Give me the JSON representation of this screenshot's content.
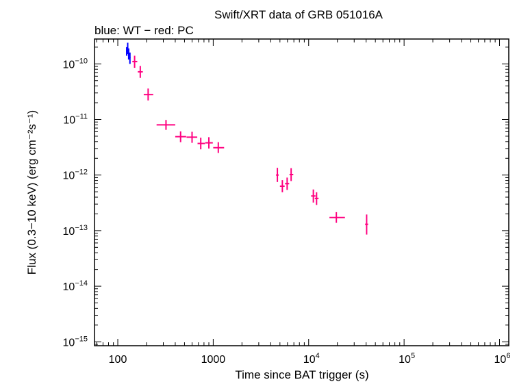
{
  "chart_data": {
    "type": "scatter",
    "title": "Swift/XRT data of GRB 051016A",
    "subtitle": "blue: WT − red: PC",
    "xlabel": "Time since BAT trigger (s)",
    "ylabel": "Flux (0.3−10 keV) (erg cm⁻²s⁻¹)",
    "xscale": "log",
    "yscale": "log",
    "xlim": [
      57,
      1250000
    ],
    "ylim": [
      8.5e-16,
      2.8e-10
    ],
    "x_ticks": [
      {
        "value": 100,
        "label": "100",
        "exp": ""
      },
      {
        "value": 1000,
        "label": "1000",
        "exp": ""
      },
      {
        "value": 10000,
        "label": "10",
        "exp": "4"
      },
      {
        "value": 100000,
        "label": "10",
        "exp": "5"
      },
      {
        "value": 1000000,
        "label": "10",
        "exp": "6"
      }
    ],
    "y_ticks": [
      {
        "value": 1e-10,
        "label": "10",
        "exp": "−10"
      },
      {
        "value": 1e-11,
        "label": "10",
        "exp": "−11"
      },
      {
        "value": 1e-12,
        "label": "10",
        "exp": "−12"
      },
      {
        "value": 1e-13,
        "label": "10",
        "exp": "−13"
      },
      {
        "value": 1e-14,
        "label": "10",
        "exp": "−14"
      },
      {
        "value": 1e-15,
        "label": "10",
        "exp": "−15"
      }
    ],
    "grid": false,
    "series": [
      {
        "mode": "WT",
        "color": "#0000ff",
        "points": [
          {
            "x": 124,
            "xlo": 122,
            "xhi": 126,
            "y": 1.7e-10,
            "ylo": 1.4e-10,
            "yhi": 2e-10
          },
          {
            "x": 127,
            "xlo": 126,
            "xhi": 129,
            "y": 1.9e-10,
            "ylo": 1.5e-10,
            "yhi": 2.4e-10
          },
          {
            "x": 130,
            "xlo": 129,
            "xhi": 132,
            "y": 1.5e-10,
            "ylo": 1.2e-10,
            "yhi": 1.9e-10
          },
          {
            "x": 134,
            "xlo": 132,
            "xhi": 136,
            "y": 1.3e-10,
            "ylo": 1e-10,
            "yhi": 1.6e-10
          }
        ]
      },
      {
        "mode": "PC",
        "color": "#ff0080",
        "points": [
          {
            "x": 150,
            "xlo": 142,
            "xhi": 160,
            "y": 1.1e-10,
            "ylo": 8.5e-11,
            "yhi": 1.4e-10
          },
          {
            "x": 172,
            "xlo": 162,
            "xhi": 183,
            "y": 7.2e-11,
            "ylo": 5.6e-11,
            "yhi": 9.2e-11
          },
          {
            "x": 208,
            "xlo": 187,
            "xhi": 235,
            "y": 2.8e-11,
            "ylo": 2.2e-11,
            "yhi": 3.6e-11
          },
          {
            "x": 320,
            "xlo": 255,
            "xhi": 400,
            "y": 8e-12,
            "ylo": 6.5e-12,
            "yhi": 9.8e-12
          },
          {
            "x": 455,
            "xlo": 400,
            "xhi": 520,
            "y": 4.9e-12,
            "ylo": 3.9e-12,
            "yhi": 6.1e-12
          },
          {
            "x": 600,
            "xlo": 525,
            "xhi": 680,
            "y": 4.8e-12,
            "ylo": 3.8e-12,
            "yhi": 6e-12
          },
          {
            "x": 740,
            "xlo": 685,
            "xhi": 820,
            "y": 3.7e-12,
            "ylo": 2.9e-12,
            "yhi": 4.7e-12
          },
          {
            "x": 900,
            "xlo": 825,
            "xhi": 990,
            "y": 3.8e-12,
            "ylo": 3e-12,
            "yhi": 4.8e-12
          },
          {
            "x": 1130,
            "xlo": 1000,
            "xhi": 1300,
            "y": 3.1e-12,
            "ylo": 2.5e-12,
            "yhi": 3.9e-12
          },
          {
            "x": 4700,
            "xlo": 4550,
            "xhi": 4850,
            "y": 1e-12,
            "ylo": 7.5e-13,
            "yhi": 1.35e-12
          },
          {
            "x": 5300,
            "xlo": 5000,
            "xhi": 5600,
            "y": 6.3e-13,
            "ylo": 4.9e-13,
            "yhi": 8.1e-13
          },
          {
            "x": 5950,
            "xlo": 5650,
            "xhi": 6250,
            "y": 7e-13,
            "ylo": 5.4e-13,
            "yhi": 9e-13
          },
          {
            "x": 6550,
            "xlo": 6300,
            "xhi": 6900,
            "y": 1.02e-12,
            "ylo": 7.8e-13,
            "yhi": 1.33e-12
          },
          {
            "x": 11200,
            "xlo": 10600,
            "xhi": 11800,
            "y": 4.2e-13,
            "ylo": 3.2e-13,
            "yhi": 5.5e-13
          },
          {
            "x": 12100,
            "xlo": 11600,
            "xhi": 12700,
            "y": 3.8e-13,
            "ylo": 2.9e-13,
            "yhi": 4.9e-13
          },
          {
            "x": 19500,
            "xlo": 16500,
            "xhi": 24000,
            "y": 1.72e-13,
            "ylo": 1.38e-13,
            "yhi": 2.15e-13
          },
          {
            "x": 40500,
            "xlo": 39000,
            "xhi": 42000,
            "y": 1.3e-13,
            "ylo": 8.5e-14,
            "yhi": 1.95e-13
          }
        ]
      }
    ]
  }
}
